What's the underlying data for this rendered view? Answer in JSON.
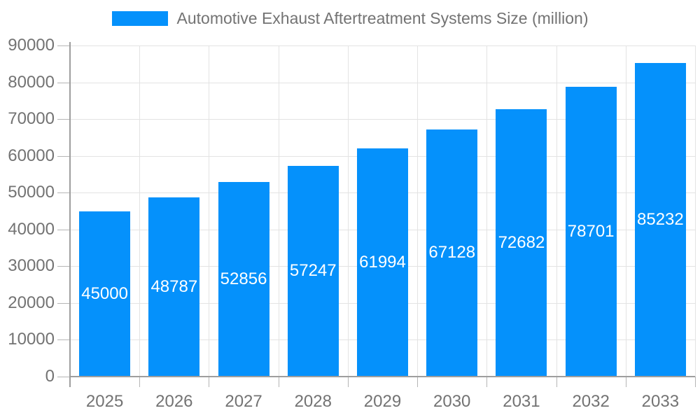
{
  "chart_data": {
    "type": "bar",
    "title": "Automotive Exhaust Aftertreatment Systems Size (million)",
    "legend": [
      {
        "label": "Automotive Exhaust Aftertreatment Systems Size (million)",
        "color": "#0591FB"
      }
    ],
    "legend_position": "top",
    "categories": [
      "2025",
      "2026",
      "2027",
      "2028",
      "2029",
      "2030",
      "2031",
      "2032",
      "2033"
    ],
    "series": [
      {
        "name": "Automotive Exhaust Aftertreatment Systems Size (million)",
        "values": [
          45000,
          48787,
          52856,
          57247,
          61994,
          67128,
          72682,
          78701,
          85232
        ]
      }
    ],
    "xlabel": "",
    "ylabel": "",
    "ylim": [
      0,
      90000
    ],
    "ytick_step": 10000,
    "ytick_labels": [
      "0",
      "10000",
      "20000",
      "30000",
      "40000",
      "50000",
      "60000",
      "70000",
      "80000",
      "90000"
    ],
    "grid": true,
    "value_label_position": "inside-center"
  },
  "colors": {
    "bar": "#0591FB",
    "bar_value_text": "#ffffff",
    "axis_text": "#737373",
    "legend_text": "#737373",
    "grid_line": "#e3e3e3",
    "axis_line": "#9e9e9e",
    "tick_line": "#b5b5b5",
    "background": "#ffffff"
  }
}
